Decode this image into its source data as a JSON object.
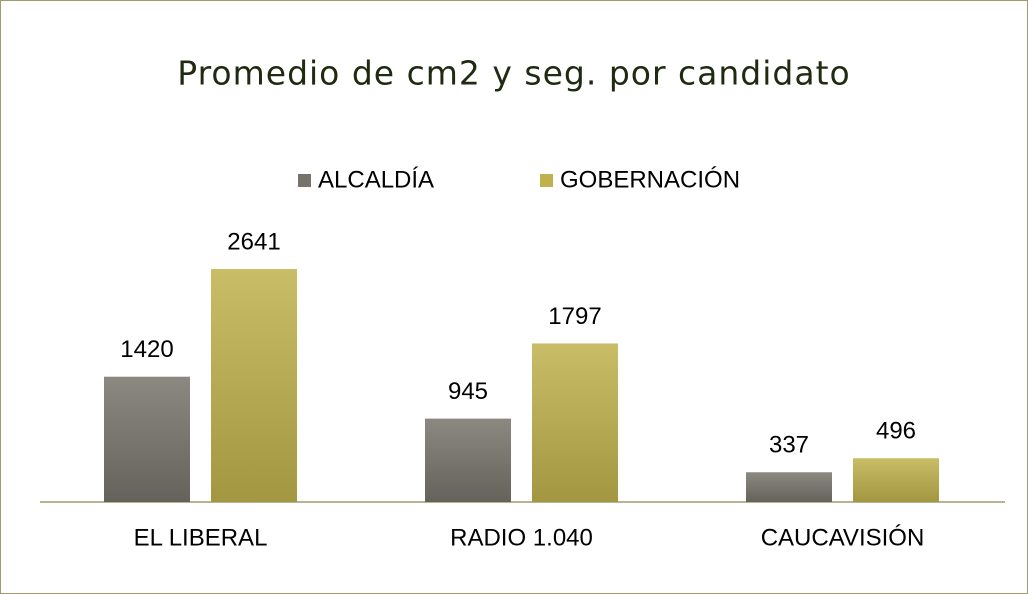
{
  "chart_data": {
    "type": "bar",
    "title": "Promedio de cm2 y seg. por candidato",
    "categories": [
      "EL LIBERAL",
      "RADIO 1.040",
      "CAUCAVISIÓN"
    ],
    "series": [
      {
        "name": "ALCALDÍA",
        "color": "#76746a",
        "values": [
          1420,
          945,
          337
        ]
      },
      {
        "name": "GOBERNACIÓN",
        "color": "#bfb24c",
        "values": [
          2641,
          1797,
          496
        ]
      }
    ],
    "legend": "top"
  }
}
